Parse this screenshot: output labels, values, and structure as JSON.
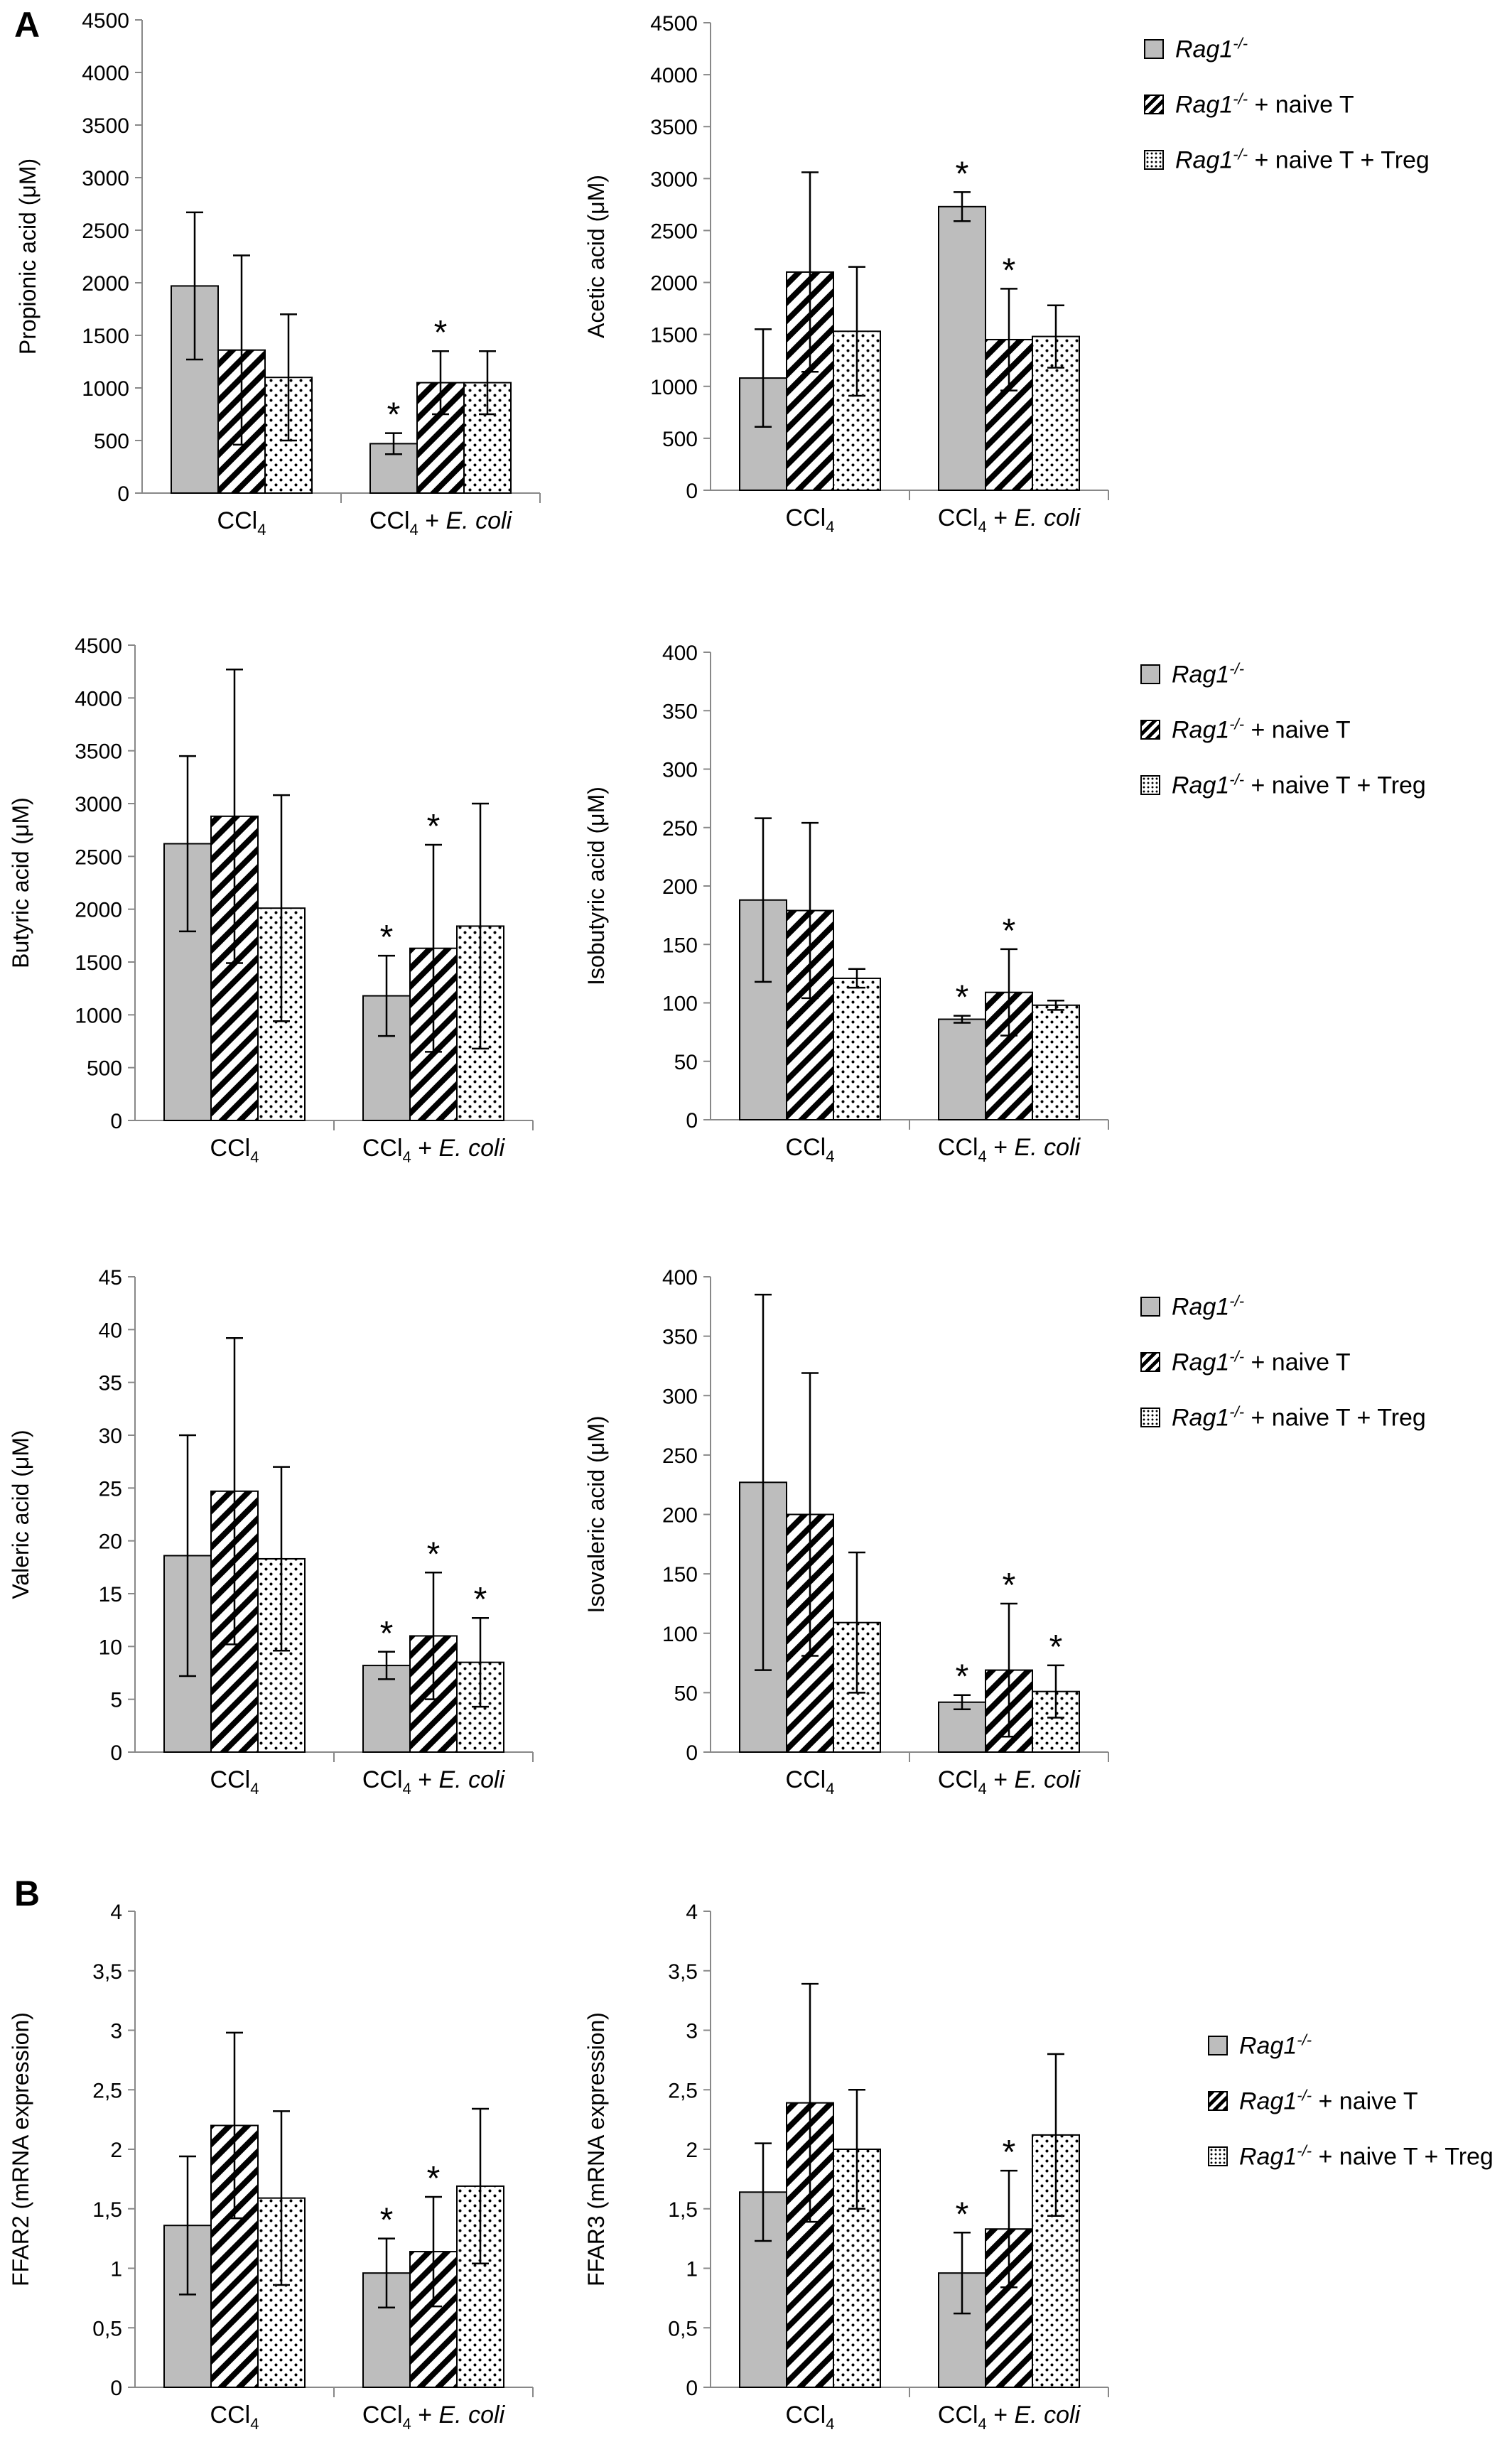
{
  "panel_labels": {
    "a": "A",
    "b": "B"
  },
  "group_labels": {
    "ccl4": "CCl",
    "sub": "4",
    "plus": " + ",
    "ecoli": "E. coli"
  },
  "legend": [
    {
      "gene": "Rag1",
      "sup": "-/-",
      "suffix": "",
      "style": "solid-gray"
    },
    {
      "gene": "Rag1",
      "sup": "-/-",
      "suffix": " + naive  T",
      "style": "hatched"
    },
    {
      "gene": "Rag1",
      "sup": "-/-",
      "suffix": " + naive T + Treg",
      "style": "dotted"
    }
  ],
  "colors": {
    "bar_fill": "#bdbdbd",
    "axis": "#888888",
    "ink": "#000000"
  },
  "chart_data": [
    {
      "type": "bar",
      "title": "",
      "ylabel": "Propionic acid (μM)",
      "categories": [
        "CCl4",
        "CCl4 + E. coli"
      ],
      "ylim": [
        0,
        4500
      ],
      "yticks": [
        "0",
        "500",
        "1000",
        "1500",
        "2000",
        "2500",
        "3000",
        "3500",
        "4000",
        "4500"
      ],
      "series": [
        {
          "values": [
            1970,
            470
          ],
          "errors": [
            700,
            100
          ],
          "significant": [
            false,
            true
          ]
        },
        {
          "values": [
            1360,
            1050
          ],
          "errors": [
            900,
            300
          ],
          "significant": [
            false,
            true
          ]
        },
        {
          "values": [
            1100,
            1050
          ],
          "errors": [
            600,
            300
          ],
          "significant": [
            false,
            false
          ]
        }
      ]
    },
    {
      "type": "bar",
      "title": "",
      "ylabel": "Acetic acid (μM)",
      "categories": [
        "CCl4",
        "CCl4 + E. coli"
      ],
      "ylim": [
        0,
        4500
      ],
      "yticks": [
        "0",
        "500",
        "1000",
        "1500",
        "2000",
        "2500",
        "3000",
        "3500",
        "4000",
        "4500"
      ],
      "series": [
        {
          "values": [
            1080,
            2730
          ],
          "errors": [
            470,
            140
          ],
          "significant": [
            false,
            true
          ]
        },
        {
          "values": [
            2100,
            1450
          ],
          "errors": [
            960,
            490
          ],
          "significant": [
            false,
            true
          ]
        },
        {
          "values": [
            1530,
            1480
          ],
          "errors": [
            620,
            300
          ],
          "significant": [
            false,
            false
          ]
        }
      ]
    },
    {
      "type": "bar",
      "title": "",
      "ylabel": "Butyric acid (μM)",
      "categories": [
        "CCl4",
        "CCl4 + E. coli"
      ],
      "ylim": [
        0,
        4500
      ],
      "yticks": [
        "0",
        "500",
        "1000",
        "1500",
        "2000",
        "2500",
        "3000",
        "3500",
        "4000",
        "4500"
      ],
      "series": [
        {
          "values": [
            2620,
            1180
          ],
          "errors": [
            830,
            380
          ],
          "significant": [
            false,
            true
          ]
        },
        {
          "values": [
            2880,
            1630
          ],
          "errors": [
            1390,
            980
          ],
          "significant": [
            false,
            true
          ]
        },
        {
          "values": [
            2010,
            1840
          ],
          "errors": [
            1070,
            1160
          ],
          "significant": [
            false,
            false
          ]
        }
      ]
    },
    {
      "type": "bar",
      "title": "",
      "ylabel": "Isobutyric acid (μM)",
      "categories": [
        "CCl4",
        "CCl4 + E. coli"
      ],
      "ylim": [
        0,
        400
      ],
      "yticks": [
        "0",
        "50",
        "100",
        "150",
        "200",
        "250",
        "300",
        "350",
        "400"
      ],
      "series": [
        {
          "values": [
            188,
            86
          ],
          "errors": [
            70,
            3
          ],
          "significant": [
            false,
            true
          ]
        },
        {
          "values": [
            179,
            109
          ],
          "errors": [
            75,
            37
          ],
          "significant": [
            false,
            true
          ]
        },
        {
          "values": [
            121,
            98
          ],
          "errors": [
            8,
            4
          ],
          "significant": [
            false,
            false
          ]
        }
      ]
    },
    {
      "type": "bar",
      "title": "",
      "ylabel": "Valeric acid (μM)",
      "categories": [
        "CCl4",
        "CCl4 + E. coli"
      ],
      "ylim": [
        0,
        45
      ],
      "yticks": [
        "0",
        "5",
        "10",
        "15",
        "20",
        "25",
        "30",
        "35",
        "40",
        "45"
      ],
      "series": [
        {
          "values": [
            18.6,
            8.2
          ],
          "errors": [
            11.4,
            1.3
          ],
          "significant": [
            false,
            true
          ]
        },
        {
          "values": [
            24.7,
            11.0
          ],
          "errors": [
            14.5,
            6.0
          ],
          "significant": [
            false,
            true
          ]
        },
        {
          "values": [
            18.3,
            8.5
          ],
          "errors": [
            8.7,
            4.2
          ],
          "significant": [
            false,
            true
          ]
        }
      ]
    },
    {
      "type": "bar",
      "title": "",
      "ylabel": "Isovaleric acid (μM)",
      "categories": [
        "CCl4",
        "CCl4 + E. coli"
      ],
      "ylim": [
        0,
        400
      ],
      "yticks": [
        "0",
        "50",
        "100",
        "150",
        "200",
        "250",
        "300",
        "350",
        "400"
      ],
      "series": [
        {
          "values": [
            227,
            42
          ],
          "errors": [
            158,
            6
          ],
          "significant": [
            false,
            true
          ]
        },
        {
          "values": [
            200,
            69
          ],
          "errors": [
            119,
            56
          ],
          "significant": [
            false,
            true
          ]
        },
        {
          "values": [
            109,
            51
          ],
          "errors": [
            59,
            22
          ],
          "significant": [
            false,
            true
          ]
        }
      ]
    },
    {
      "type": "bar",
      "title": "",
      "ylabel": "FFAR2 (mRNA expression)",
      "categories": [
        "CCl4",
        "CCl4 + E. coli"
      ],
      "ylim": [
        0,
        4
      ],
      "yticks": [
        "0",
        "0,5",
        "1",
        "1,5",
        "2",
        "2,5",
        "3",
        "3,5",
        "4"
      ],
      "series": [
        {
          "values": [
            1.36,
            0.96
          ],
          "errors": [
            0.58,
            0.29
          ],
          "significant": [
            false,
            true
          ]
        },
        {
          "values": [
            2.2,
            1.14
          ],
          "errors": [
            0.78,
            0.46
          ],
          "significant": [
            false,
            true
          ]
        },
        {
          "values": [
            1.59,
            1.69
          ],
          "errors": [
            0.73,
            0.65
          ],
          "significant": [
            false,
            false
          ]
        }
      ]
    },
    {
      "type": "bar",
      "title": "",
      "ylabel": "FFAR3 (mRNA expression)",
      "categories": [
        "CCl4",
        "CCl4 + E. coli"
      ],
      "ylim": [
        0,
        4
      ],
      "yticks": [
        "0",
        "0,5",
        "1",
        "1,5",
        "2",
        "2,5",
        "3",
        "3,5",
        "4"
      ],
      "series": [
        {
          "values": [
            1.64,
            0.96
          ],
          "errors": [
            0.41,
            0.34
          ],
          "significant": [
            false,
            true
          ]
        },
        {
          "values": [
            2.39,
            1.33
          ],
          "errors": [
            1.0,
            0.49
          ],
          "significant": [
            false,
            true
          ]
        },
        {
          "values": [
            2.0,
            2.12
          ],
          "errors": [
            0.5,
            0.68
          ],
          "significant": [
            false,
            false
          ]
        }
      ]
    }
  ]
}
